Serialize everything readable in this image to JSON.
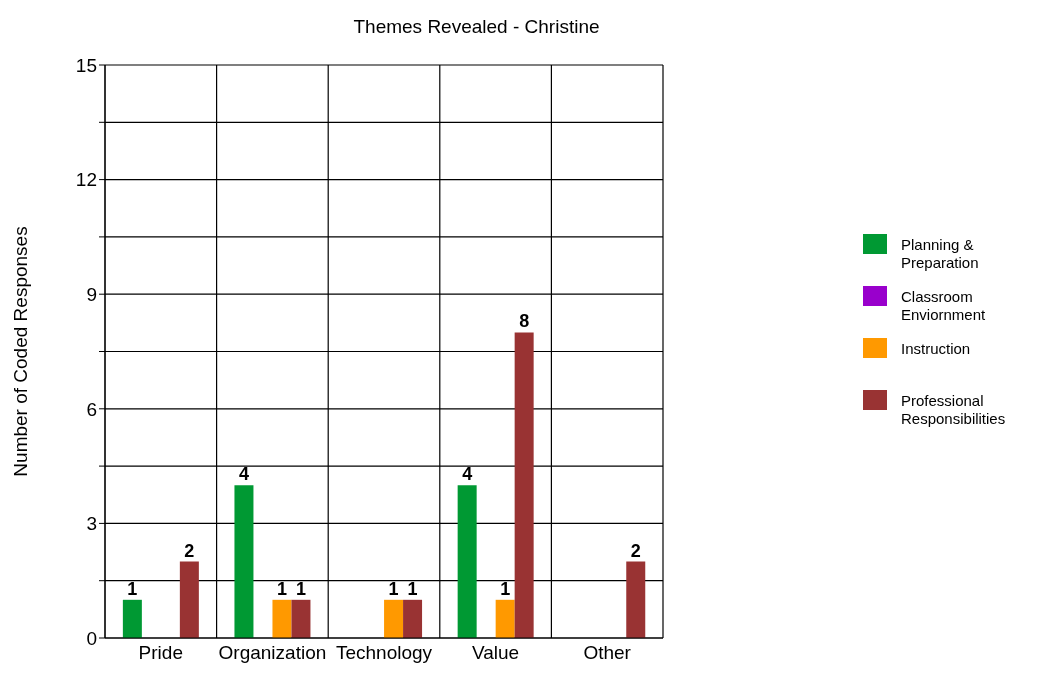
{
  "chart_data": {
    "type": "bar",
    "title": "Themes Revealed - Christine",
    "ylabel": "Number of Coded Responses",
    "categories": [
      "Pride",
      "Organization",
      "Technology",
      "Value",
      "Other"
    ],
    "series": [
      {
        "name": "Planning & Preparation",
        "color": "#009933",
        "values": [
          1,
          4,
          null,
          4,
          null
        ]
      },
      {
        "name": "Classroom Enviornment",
        "color": "#9900cc",
        "values": [
          null,
          null,
          null,
          null,
          null
        ]
      },
      {
        "name": "Instruction",
        "color": "#ff9900",
        "values": [
          null,
          1,
          1,
          1,
          null
        ]
      },
      {
        "name": "Professional Responsibilities",
        "color": "#993333",
        "values": [
          2,
          1,
          1,
          8,
          2
        ]
      }
    ],
    "ylim": [
      0,
      15
    ],
    "yticks": [
      0,
      {
        "value": 1.5,
        "label": null
      },
      3,
      {
        "value": 4.5,
        "label": null
      },
      6,
      {
        "value": 7.5,
        "label": null
      },
      9,
      {
        "value": 10.5,
        "label": null
      },
      12,
      {
        "value": 13.5,
        "label": null
      },
      15
    ],
    "grid": true,
    "legend": "right",
    "data_labels": true
  }
}
